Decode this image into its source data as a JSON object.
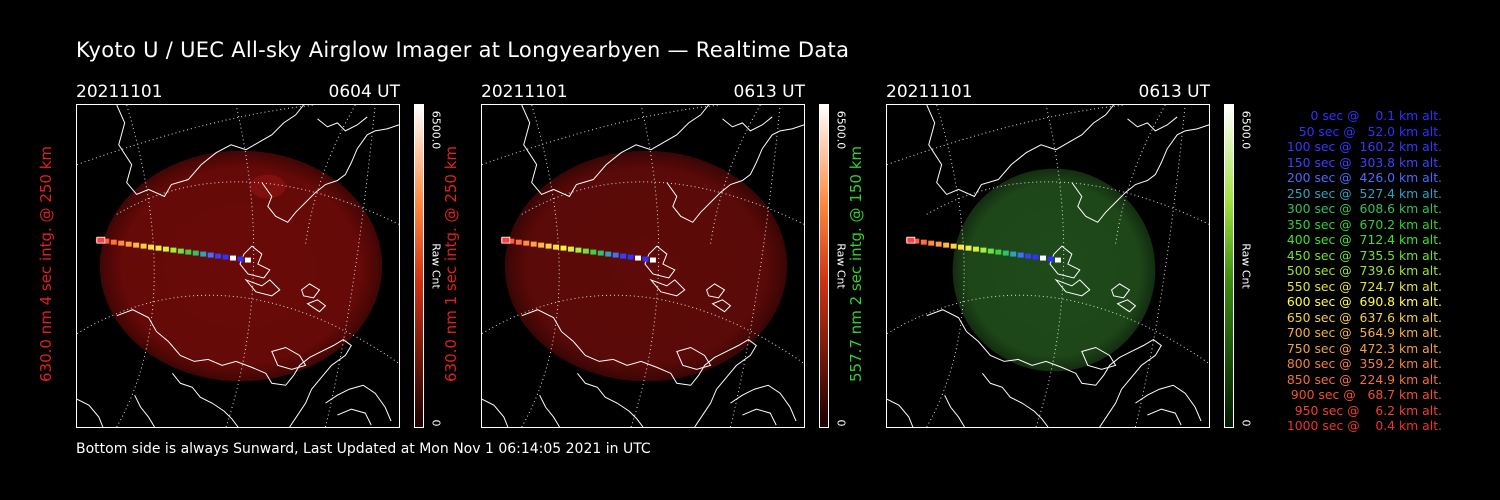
{
  "title": "Kyoto U / UEC All-sky Airglow Imager at Longyearbyen — Realtime Data",
  "footer": "Bottom side is always Sunward, Last Updated at Mon Nov  1 06:14:05 2021 in UTC",
  "panels": [
    {
      "date": "20211101",
      "time": "0604 UT",
      "ylabel": "630.0 nm 4 sec intg. @ 250 km",
      "label_color": "#e02020",
      "cb_max": "6500.0",
      "cb_min": "0",
      "cb_unit": "Raw Cnt",
      "glow_color": "#6a0a08",
      "cb_top": "#ffffff",
      "cb_bottom": "#1a0000"
    },
    {
      "date": "20211101",
      "time": "0613 UT",
      "ylabel": "630.0 nm 1 sec intg. @ 250 km",
      "label_color": "#e02020",
      "cb_max": "6500.0",
      "cb_min": "0",
      "cb_unit": "Raw Cnt",
      "glow_color": "#5e0a08",
      "cb_top": "#ffffff",
      "cb_bottom": "#1a0000"
    },
    {
      "date": "20211101",
      "time": "0613 UT",
      "ylabel": "557.7 nm 2 sec intg. @ 150 km",
      "label_color": "#30d030",
      "cb_max": "6500.0",
      "cb_min": "0",
      "cb_unit": "Raw Cnt",
      "glow_color": "#1f4a1a",
      "cb_top": "#ffffff",
      "cb_bottom": "#001a00"
    }
  ],
  "legend": [
    {
      "text": "   0 sec @    0.1 km alt.",
      "color": "#3030ff"
    },
    {
      "text": "  50 sec @   52.0 km alt.",
      "color": "#3030ff"
    },
    {
      "text": " 100 sec @  160.2 km alt.",
      "color": "#3838ff"
    },
    {
      "text": " 150 sec @  303.8 km alt.",
      "color": "#4040ff"
    },
    {
      "text": " 200 sec @  426.0 km alt.",
      "color": "#4a6aff"
    },
    {
      "text": " 250 sec @  527.4 km alt.",
      "color": "#30a0c0"
    },
    {
      "text": " 300 sec @  608.6 km alt.",
      "color": "#30c060"
    },
    {
      "text": " 350 sec @  670.2 km alt.",
      "color": "#30d030"
    },
    {
      "text": " 400 sec @  712.4 km alt.",
      "color": "#40e030"
    },
    {
      "text": " 450 sec @  735.5 km alt.",
      "color": "#70e030"
    },
    {
      "text": " 500 sec @  739.6 km alt.",
      "color": "#a0e030"
    },
    {
      "text": " 550 sec @  724.7 km alt.",
      "color": "#e0e040"
    },
    {
      "text": " 600 sec @  690.8 km alt.",
      "color": "#ffff40"
    },
    {
      "text": " 650 sec @  637.6 km alt.",
      "color": "#f0d040"
    },
    {
      "text": " 700 sec @  564.9 km alt.",
      "color": "#f0b040"
    },
    {
      "text": " 750 sec @  472.3 km alt.",
      "color": "#f0a040"
    },
    {
      "text": " 800 sec @  359.2 km alt.",
      "color": "#f08040"
    },
    {
      "text": " 850 sec @  224.9 km alt.",
      "color": "#f07040"
    },
    {
      "text": " 900 sec @   68.7 km alt.",
      "color": "#f05030"
    },
    {
      "text": " 950 sec @    6.2 km alt.",
      "color": "#f04030"
    },
    {
      "text": "1000 sec @    0.4 km alt.",
      "color": "#f03030"
    }
  ],
  "track_colors": [
    "#ff4040",
    "#ff5a3a",
    "#ff7040",
    "#ff8a40",
    "#ffa040",
    "#ffb840",
    "#ffd040",
    "#ffe040",
    "#f0f040",
    "#d0f040",
    "#a0f040",
    "#70e040",
    "#40d040",
    "#30c070",
    "#30a0c0",
    "#4070ff",
    "#3040ff",
    "#3030ff",
    "#ffffff",
    "#3030ff",
    "#ffffff"
  ]
}
